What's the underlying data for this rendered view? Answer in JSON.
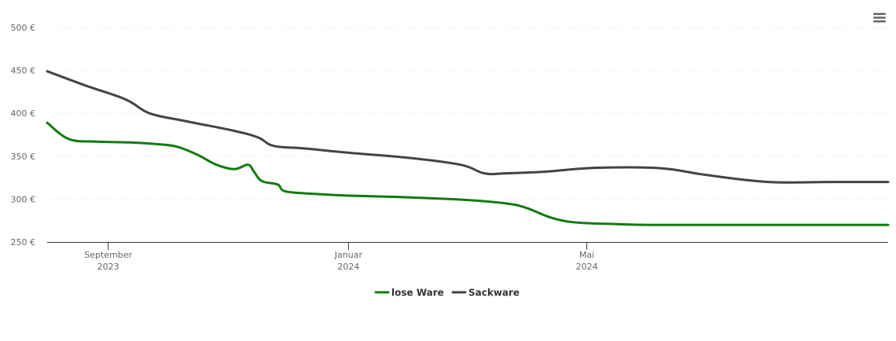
{
  "chart_data": {
    "type": "line",
    "title": "",
    "xlabel": "",
    "ylabel": "",
    "x_axis_type": "datetime",
    "xlim": [
      "2023-08-01",
      "2024-10-01"
    ],
    "ylim": [
      250,
      500
    ],
    "y_ticks": [
      250,
      300,
      350,
      400,
      450,
      500
    ],
    "y_tick_labels": [
      "250 €",
      "300 €",
      "350 €",
      "400 €",
      "450 €",
      "500 €"
    ],
    "x_ticks": [
      {
        "date": "2023-09-01",
        "month": "September",
        "year": "2023"
      },
      {
        "date": "2024-01-01",
        "month": "Januar",
        "year": "2024"
      },
      {
        "date": "2024-05-01",
        "month": "Mai",
        "year": "2024"
      }
    ],
    "grid": true,
    "legend_position": "bottom-center",
    "series": [
      {
        "name": "lose Ware",
        "color": "#0f7b0f",
        "points": [
          {
            "x": "2023-08-01",
            "y": 389
          },
          {
            "x": "2023-08-12",
            "y": 370
          },
          {
            "x": "2023-08-26",
            "y": 367
          },
          {
            "x": "2023-09-12",
            "y": 366
          },
          {
            "x": "2023-09-26",
            "y": 364
          },
          {
            "x": "2023-10-06",
            "y": 361
          },
          {
            "x": "2023-10-16",
            "y": 352
          },
          {
            "x": "2023-10-26",
            "y": 340
          },
          {
            "x": "2023-11-04",
            "y": 335
          },
          {
            "x": "2023-11-11",
            "y": 340
          },
          {
            "x": "2023-11-14",
            "y": 332
          },
          {
            "x": "2023-11-18",
            "y": 321
          },
          {
            "x": "2023-11-26",
            "y": 317
          },
          {
            "x": "2023-11-30",
            "y": 309
          },
          {
            "x": "2023-12-15",
            "y": 306
          },
          {
            "x": "2024-01-01",
            "y": 304
          },
          {
            "x": "2024-02-01",
            "y": 302
          },
          {
            "x": "2024-03-01",
            "y": 299
          },
          {
            "x": "2024-03-21",
            "y": 295
          },
          {
            "x": "2024-03-31",
            "y": 290
          },
          {
            "x": "2024-04-12",
            "y": 279
          },
          {
            "x": "2024-04-21",
            "y": 274
          },
          {
            "x": "2024-05-01",
            "y": 272
          },
          {
            "x": "2024-05-15",
            "y": 271
          },
          {
            "x": "2024-06-01",
            "y": 270
          },
          {
            "x": "2024-07-01",
            "y": 270
          },
          {
            "x": "2024-08-01",
            "y": 270
          },
          {
            "x": "2024-09-01",
            "y": 270
          },
          {
            "x": "2024-10-01",
            "y": 270
          }
        ]
      },
      {
        "name": "Sackware",
        "color": "#434348",
        "points": [
          {
            "x": "2023-08-01",
            "y": 449
          },
          {
            "x": "2023-08-21",
            "y": 432
          },
          {
            "x": "2023-09-10",
            "y": 416
          },
          {
            "x": "2023-09-22",
            "y": 400
          },
          {
            "x": "2023-10-10",
            "y": 391
          },
          {
            "x": "2023-11-03",
            "y": 380
          },
          {
            "x": "2023-11-16",
            "y": 372
          },
          {
            "x": "2023-11-24",
            "y": 362
          },
          {
            "x": "2023-12-10",
            "y": 359
          },
          {
            "x": "2024-01-01",
            "y": 354
          },
          {
            "x": "2024-02-01",
            "y": 348
          },
          {
            "x": "2024-02-27",
            "y": 340
          },
          {
            "x": "2024-03-10",
            "y": 330
          },
          {
            "x": "2024-03-21",
            "y": 330
          },
          {
            "x": "2024-04-10",
            "y": 332
          },
          {
            "x": "2024-05-01",
            "y": 336
          },
          {
            "x": "2024-05-25",
            "y": 337
          },
          {
            "x": "2024-06-12",
            "y": 335
          },
          {
            "x": "2024-07-01",
            "y": 328
          },
          {
            "x": "2024-08-01",
            "y": 320
          },
          {
            "x": "2024-09-01",
            "y": 320
          },
          {
            "x": "2024-10-01",
            "y": 320
          }
        ]
      }
    ]
  },
  "menu_icon": "hamburger-menu-icon"
}
